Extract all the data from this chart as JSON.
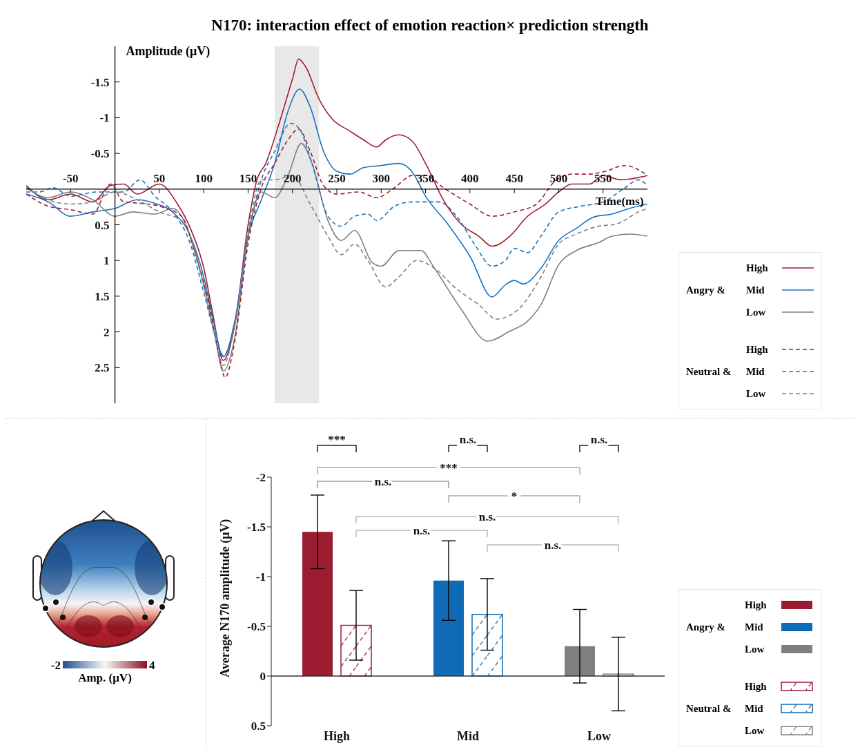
{
  "chart_data": [
    {
      "type": "line",
      "title": "N170: interaction effect of emotion reaction× prediction strength",
      "xlabel": "Time(ms)",
      "ylabel": "Amplitude (μV)",
      "xlim": [
        -100,
        600
      ],
      "xticks": [
        -50,
        50,
        100,
        150,
        200,
        250,
        300,
        350,
        400,
        450,
        500,
        550
      ],
      "ylim": [
        3,
        -2
      ],
      "yticks": [
        -1.5,
        -1,
        -0.5,
        0.5,
        1,
        1.5,
        2,
        2.5
      ],
      "legend": "right",
      "annotations": [
        "Angry &",
        "Neutral &"
      ],
      "bands": [
        {
          "axis": "x",
          "from": 180,
          "to": 230,
          "color": "#e8e8e8"
        }
      ],
      "series": [
        {
          "name": "High",
          "color": "#a21c32",
          "line_style": "solid",
          "x": [
            -100,
            -75,
            -50,
            -25,
            -5,
            10,
            25,
            50,
            70,
            85,
            100,
            110,
            122,
            135,
            150,
            160,
            170,
            185,
            200,
            207,
            215,
            230,
            245,
            265,
            280,
            295,
            305,
            320,
            335,
            350,
            370,
            390,
            410,
            425,
            445,
            465,
            485,
            500,
            515,
            535,
            550,
            570,
            600
          ],
          "values": [
            -0.05,
            0.15,
            0.07,
            0.18,
            -0.05,
            -0.07,
            0.07,
            -0.07,
            0.2,
            0.55,
            1.1,
            1.73,
            2.4,
            1.9,
            0.5,
            -0.13,
            -0.36,
            -0.92,
            -1.54,
            -1.82,
            -1.71,
            -1.26,
            -0.98,
            -0.81,
            -0.69,
            -0.59,
            -0.69,
            -0.76,
            -0.67,
            -0.36,
            0.15,
            0.49,
            0.66,
            0.8,
            0.66,
            0.38,
            0.21,
            0.04,
            -0.07,
            -0.07,
            -0.19,
            -0.13,
            -0.19
          ]
        },
        {
          "name": "Mid",
          "color": "#1b72be",
          "line_style": "solid",
          "x": [
            -100,
            -75,
            -50,
            -25,
            0,
            25,
            45,
            65,
            85,
            100,
            110,
            122,
            135,
            150,
            165,
            180,
            195,
            208,
            220,
            235,
            250,
            265,
            280,
            300,
            320,
            335,
            350,
            375,
            400,
            425,
            440,
            450,
            460,
            480,
            500,
            520,
            540,
            560,
            580,
            600
          ],
          "values": [
            0.07,
            0.18,
            0.38,
            0.32,
            0.27,
            0.15,
            0.2,
            0.32,
            0.66,
            1.23,
            1.79,
            2.35,
            1.85,
            0.66,
            0.15,
            -0.36,
            -1.09,
            -1.4,
            -1.15,
            -0.53,
            -0.25,
            -0.21,
            -0.3,
            -0.33,
            -0.36,
            -0.24,
            0.1,
            0.49,
            0.94,
            1.51,
            1.34,
            1.28,
            1.33,
            1.11,
            0.72,
            0.55,
            0.39,
            0.35,
            0.27,
            0.21
          ]
        },
        {
          "name": "Low",
          "color": "#7f7f7f",
          "line_style": "solid",
          "x": [
            -100,
            -75,
            -50,
            -25,
            0,
            20,
            45,
            65,
            85,
            100,
            112,
            122,
            135,
            150,
            165,
            180,
            195,
            210,
            222,
            240,
            255,
            270,
            290,
            300,
            320,
            345,
            360,
            390,
            420,
            445,
            465,
            480,
            500,
            520,
            545,
            560,
            580,
            600
          ],
          "values": [
            -0.02,
            0.12,
            0.04,
            0.15,
            0.38,
            0.32,
            0.35,
            0.27,
            0.66,
            1.34,
            2.02,
            2.55,
            2.08,
            0.66,
            0.04,
            0.12,
            -0.19,
            -0.64,
            -0.36,
            0.44,
            0.72,
            0.58,
            1.03,
            1.08,
            0.86,
            0.86,
            1.11,
            1.68,
            2.13,
            1.99,
            1.85,
            1.62,
            1.06,
            0.86,
            0.75,
            0.66,
            0.63,
            0.66
          ]
        },
        {
          "name": "High",
          "color": "#a21c32",
          "line_style": "dashed",
          "x": [
            -100,
            -75,
            -50,
            -25,
            -5,
            10,
            30,
            50,
            75,
            90,
            105,
            118,
            124,
            135,
            150,
            165,
            180,
            195,
            207,
            220,
            235,
            250,
            275,
            295,
            315,
            335,
            350,
            370,
            400,
            425,
            450,
            475,
            495,
            515,
            535,
            550,
            575,
            600
          ],
          "values": [
            0.07,
            0.24,
            0.29,
            0.35,
            -0.07,
            0.18,
            0.2,
            0.24,
            0.38,
            0.89,
            1.56,
            2.36,
            2.64,
            2.13,
            0.77,
            -0.02,
            -0.36,
            -0.69,
            -0.84,
            -0.53,
            -0.05,
            0.07,
            0.04,
            0.12,
            -0.02,
            -0.19,
            -0.19,
            -0.02,
            0.21,
            0.38,
            0.32,
            0.21,
            -0.1,
            -0.21,
            -0.21,
            -0.24,
            -0.33,
            -0.19
          ]
        },
        {
          "name": "Mid",
          "color": "#1b72be",
          "line_style": "dashed",
          "x": [
            -100,
            -85,
            -70,
            -50,
            -20,
            10,
            28,
            45,
            65,
            85,
            100,
            115,
            122,
            135,
            150,
            165,
            180,
            198,
            208,
            222,
            240,
            255,
            270,
            285,
            295,
            315,
            335,
            365,
            385,
            405,
            425,
            440,
            450,
            465,
            480,
            500,
            525,
            550,
            575,
            590,
            600
          ],
          "values": [
            0.04,
            0.04,
            -0.02,
            0.1,
            0.04,
            0.04,
            -0.13,
            0.1,
            0.32,
            0.77,
            1.45,
            2.13,
            2.33,
            1.9,
            0.66,
            -0.13,
            -0.53,
            -0.92,
            -0.84,
            -0.36,
            0.38,
            0.52,
            0.38,
            0.35,
            0.44,
            0.24,
            0.18,
            0.18,
            0.38,
            0.77,
            1.08,
            1.0,
            0.83,
            0.89,
            0.66,
            0.32,
            0.24,
            0.18,
            -0.02,
            -0.13,
            -0.05
          ]
        },
        {
          "name": "Low",
          "color": "#7f7f7f",
          "line_style": "dashed",
          "x": [
            -100,
            -75,
            -50,
            -25,
            0,
            25,
            50,
            75,
            95,
            112,
            122,
            135,
            150,
            165,
            180,
            200,
            220,
            240,
            255,
            270,
            285,
            305,
            320,
            340,
            360,
            385,
            410,
            430,
            455,
            480,
            500,
            520,
            545,
            565,
            590,
            600
          ],
          "values": [
            -0.02,
            0.15,
            0.21,
            0.18,
            0.04,
            0.15,
            0.32,
            0.44,
            1.11,
            2.02,
            2.47,
            1.9,
            0.6,
            -0.13,
            -0.13,
            -0.19,
            0.21,
            0.66,
            0.92,
            0.77,
            1.0,
            1.37,
            1.23,
            1.0,
            1.11,
            1.4,
            1.62,
            1.82,
            1.68,
            1.23,
            0.77,
            0.63,
            0.52,
            0.49,
            0.32,
            0.27
          ]
        }
      ]
    },
    {
      "type": "other",
      "annotations": [
        "-2",
        "4"
      ],
      "clabel": "Amp. (μV)"
    },
    {
      "type": "bar",
      "categories": [
        "High",
        "Mid",
        "Low"
      ],
      "ylabel": "Average N170 amplitude (μV)",
      "ylim": [
        0.5,
        -2
      ],
      "yticks": [
        -2,
        -1.5,
        -1,
        -0.5,
        0,
        0.5
      ],
      "legend": "right",
      "annotations": [
        "***",
        "n.s.",
        "n.s.",
        "***",
        "n.s.",
        "*",
        "n.s.",
        "n.s.",
        "n.s."
      ],
      "series": [
        {
          "name": "Angry &",
          "colors": [
            "#9b1b30",
            "#0f6bb5",
            "#7f7f7f"
          ],
          "values": [
            -1.45,
            -0.96,
            -0.3
          ],
          "errors": [
            0.37,
            0.4,
            0.37
          ],
          "line_style": "solid"
        },
        {
          "name": "Neutral &",
          "colors": [
            "#9b1b30",
            "#0f6bb5",
            "#7f7f7f"
          ],
          "values": [
            -0.51,
            -0.62,
            -0.02
          ],
          "errors": [
            0.35,
            0.36,
            0.37
          ],
          "line_style": "dashed"
        }
      ]
    }
  ]
}
